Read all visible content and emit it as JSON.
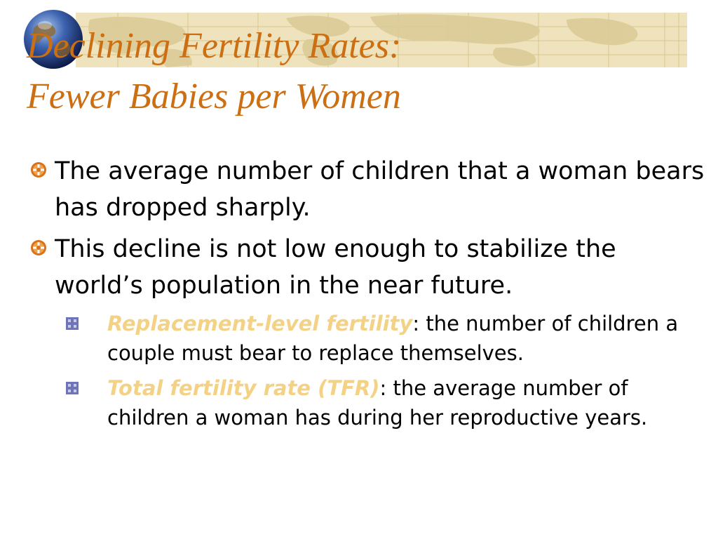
{
  "title": {
    "line1": "Declining Fertility Rates:",
    "line2": "Fewer Babies per Women"
  },
  "bullets": [
    {
      "text": "The average number of children that a woman bears has dropped sharply."
    },
    {
      "text": "This decline is not low enough to stabilize the world’s population in the near future."
    }
  ],
  "sub_bullets": [
    {
      "term": "Replacement-level fertility",
      "definition": ": the number of children a couple must bear to replace themselves."
    },
    {
      "term": "Total fertility rate (TFR)",
      "definition": ": the average number of children a woman has during her reproductive years."
    }
  ],
  "colors": {
    "title": "#cc6f12",
    "term": "#f3d285",
    "banner": "#efe3bd",
    "bullet_marker": "#d9731b",
    "sub_marker": "#6f73b8"
  },
  "icons": {
    "globe": "globe-icon",
    "bullet": "gear-bullet-icon",
    "sub_bullet": "square-bullet-icon"
  }
}
